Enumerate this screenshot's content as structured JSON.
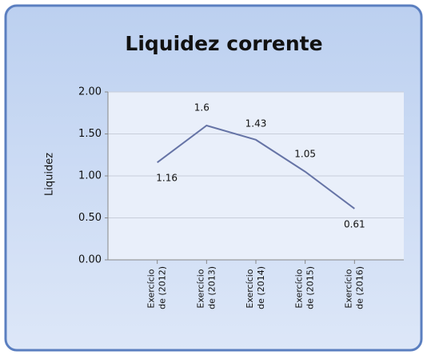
{
  "chart_data": {
    "type": "line",
    "title": "Liquidez corrente",
    "y_label": "Liquidez",
    "categories": [
      "Exercício de (2012)",
      "Exercício de (2013)",
      "Exercício de (2014)",
      "Exercício de (2015)",
      "Exercício de (2016)"
    ],
    "values": [
      1.16,
      1.6,
      1.43,
      1.05,
      0.61
    ],
    "color": "#6674a6",
    "ylim": [
      0,
      2
    ],
    "yticks": [
      {
        "value": 0,
        "label": "0.00"
      },
      {
        "value": 0.5,
        "label": "0.50"
      },
      {
        "value": 1,
        "label": "1.00"
      },
      {
        "value": 1.5,
        "label": "1.50"
      },
      {
        "value": 2,
        "label": "2.00"
      }
    ],
    "grid": true
  }
}
